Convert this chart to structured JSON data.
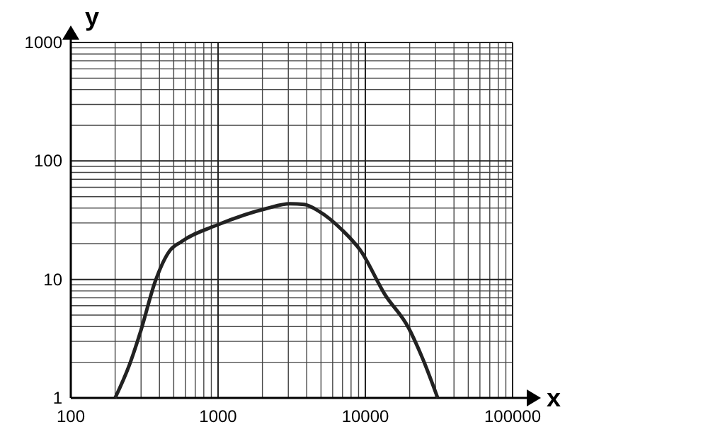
{
  "chart_data": {
    "type": "line",
    "xlabel": "x",
    "ylabel": "y",
    "log": "xy",
    "grid": true,
    "xlim": [
      100,
      100000
    ],
    "ylim": [
      1,
      1000
    ],
    "xticks": [
      100,
      1000,
      10000,
      100000
    ],
    "yticks": [
      1,
      10,
      100,
      1000
    ],
    "line_style": "solid",
    "marker": "none",
    "series": [
      {
        "color": "#222222",
        "x": [
          200,
          250,
          300,
          373,
          467,
          562,
          1000,
          2130,
          3080,
          3850,
          4800,
          6950,
          9350,
          13550,
          19600,
          24500,
          31000
        ],
        "values": [
          1,
          1.9,
          3.75,
          9.5,
          17.3,
          20.8,
          29,
          39.7,
          43.5,
          43,
          37.9,
          26.2,
          17.3,
          7.5,
          3.93,
          2.15,
          1
        ]
      }
    ]
  }
}
